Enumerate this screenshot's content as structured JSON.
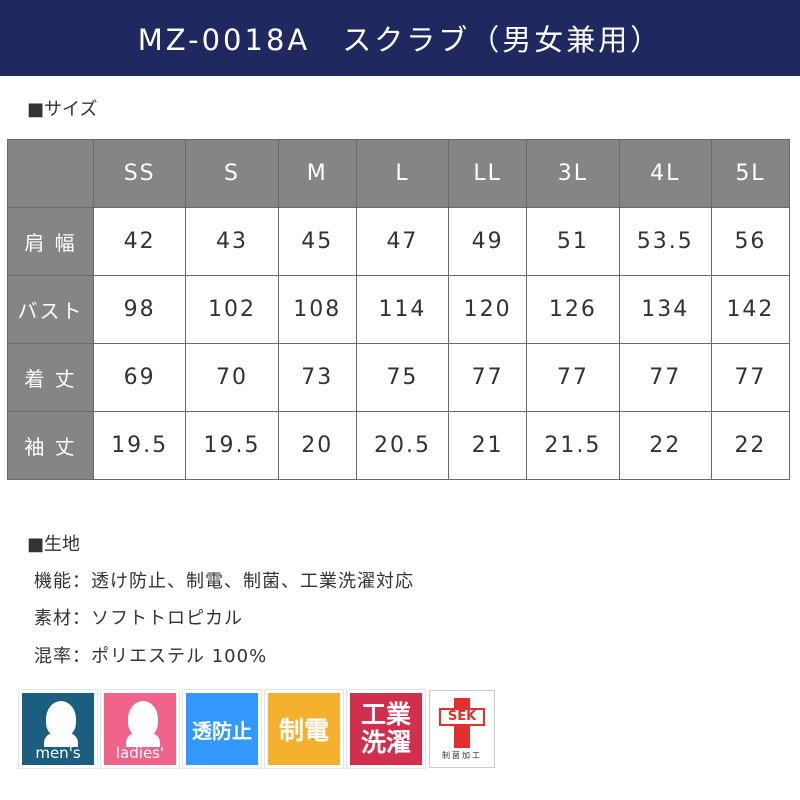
{
  "title": "MZ-0018A　スクラブ（男女兼用）",
  "size_section": "■サイズ",
  "size_table": {
    "columns": [
      "SS",
      "S",
      "M",
      "L",
      "LL",
      "3L",
      "4L",
      "5L"
    ],
    "rows": [
      {
        "label": "肩 幅",
        "values": [
          "42",
          "43",
          "45",
          "47",
          "49",
          "51",
          "53.5",
          "56"
        ]
      },
      {
        "label": "バスト",
        "values": [
          "98",
          "102",
          "108",
          "114",
          "120",
          "126",
          "134",
          "142"
        ]
      },
      {
        "label": "着 丈",
        "values": [
          "69",
          "70",
          "73",
          "75",
          "77",
          "77",
          "77",
          "77"
        ]
      },
      {
        "label": "袖 丈",
        "values": [
          "19.5",
          "19.5",
          "20",
          "20.5",
          "21",
          "21.5",
          "22",
          "22"
        ]
      }
    ]
  },
  "fabric_section": "■生地",
  "specs": [
    "機能：透け防止、制電、制菌、工業洗濯対応",
    "素材：ソフトトロピカル",
    "混率：ポリエステル 100%"
  ],
  "icons": [
    {
      "name": "mens-icon",
      "label": "men's",
      "color": "#1b5e80"
    },
    {
      "name": "ladies-icon",
      "label": "ladies'",
      "color": "#f0648c"
    },
    {
      "name": "anti-transparent-icon",
      "label": "透防止",
      "color": "#3399ff"
    },
    {
      "name": "antistatic-icon",
      "label": "制電",
      "color": "#f5b02f"
    },
    {
      "name": "industrial-wash-icon",
      "label": "工業洗濯",
      "color": "#d0304e"
    },
    {
      "name": "sek-icon",
      "label": "SEK",
      "caption": "制菌加工"
    }
  ]
}
